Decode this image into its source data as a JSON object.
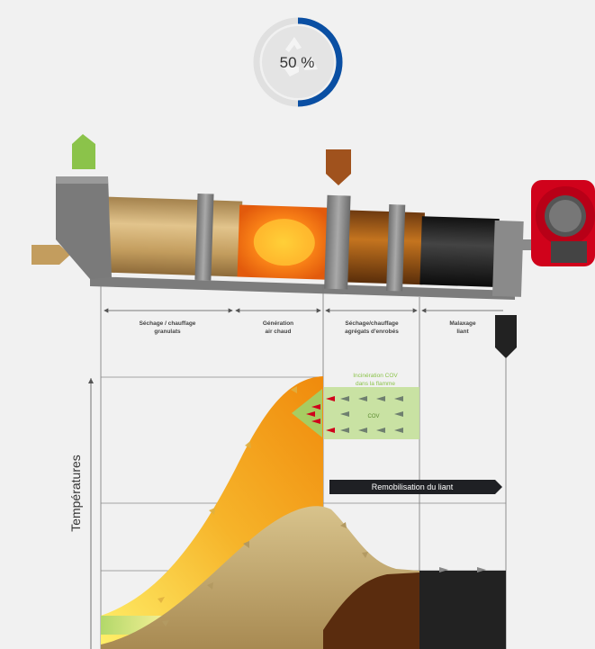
{
  "progress": {
    "value_percent": 50,
    "label": "50 %",
    "icon": "recycle-icon",
    "accent": "#0a4fa3"
  },
  "diagram": {
    "y_axis_label": "Températures",
    "zones": [
      {
        "label_line1": "Séchage / chauffage",
        "label_line2": "granulats"
      },
      {
        "label_line1": "Génération",
        "label_line2": "air chaud"
      },
      {
        "label_line1": "Séchage/chauffage",
        "label_line2": "agrégats d'enrobés"
      },
      {
        "label_line1": "Malaxage",
        "label_line2": "liant"
      }
    ],
    "incineration_note_line1": "Incinération COV",
    "incineration_note_line2": "dans la flamme",
    "co2_label": "COV",
    "remobilisation_label": "Remobilisation du liant",
    "colors": {
      "granulats_curve": "#f5a623",
      "agregats_curve": "#c9b47a",
      "bitumen_black": "#222222",
      "burner_red": "#d0021b",
      "inlet_green": "#8bc34a",
      "inlet_brown": "#a0521d"
    }
  }
}
